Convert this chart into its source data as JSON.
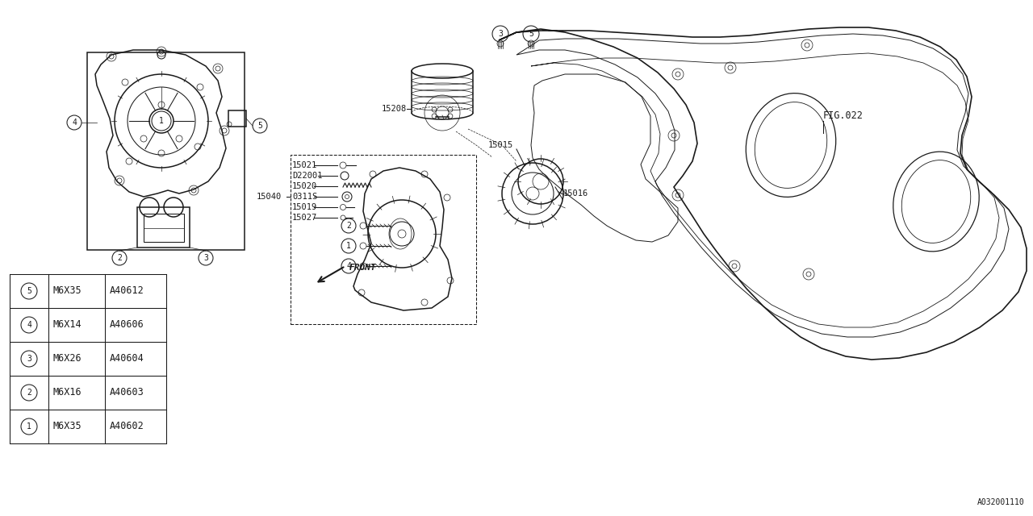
{
  "bg_color": "#ffffff",
  "line_color": "#1a1a1a",
  "part_number_bottom": "A032001110",
  "fig_label": "FIG.022",
  "table_rows": [
    {
      "num": "1",
      "size": "M6X35",
      "code": "A40602"
    },
    {
      "num": "2",
      "size": "M6X16",
      "code": "A40603"
    },
    {
      "num": "3",
      "size": "M6X26",
      "code": "A40604"
    },
    {
      "num": "4",
      "size": "M6X14",
      "code": "A40606"
    },
    {
      "num": "5",
      "size": "M6X35",
      "code": "A40612"
    }
  ],
  "label_15208": "15208",
  "label_15015": "15015",
  "label_15016": "15016",
  "label_15021": "15021",
  "label_D22001": "D22001",
  "label_15020": "15020",
  "label_15040": "15040",
  "label_0311S": "0311S",
  "label_15019": "15019",
  "label_15027": "15027",
  "front_label": "FRONT",
  "lw_main": 1.1,
  "lw_mid": 0.75,
  "lw_thin": 0.5,
  "fs_label": 7.5,
  "fs_table": 8.5,
  "fs_circled": 7
}
